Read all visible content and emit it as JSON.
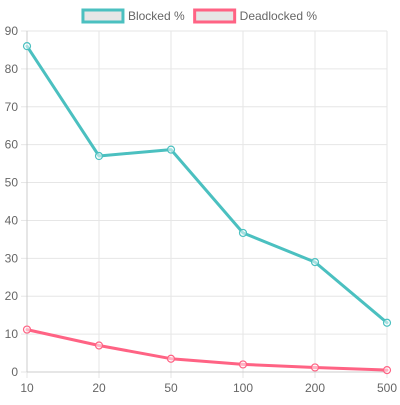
{
  "chart_data": {
    "type": "line",
    "categories": [
      "10",
      "20",
      "50",
      "100",
      "200",
      "500"
    ],
    "series": [
      {
        "name": "Blocked %",
        "color": "#4bc0c0",
        "values": [
          86,
          57,
          58.7,
          36.7,
          29,
          13
        ]
      },
      {
        "name": "Deadlocked %",
        "color": "#ff6384",
        "values": [
          11.2,
          7,
          3.5,
          2,
          1.2,
          0.5
        ]
      }
    ],
    "ylim": [
      0,
      90
    ],
    "yticks": [
      0,
      10,
      20,
      30,
      40,
      50,
      60,
      70,
      80,
      90
    ],
    "grid": true,
    "legend": "top-center"
  }
}
